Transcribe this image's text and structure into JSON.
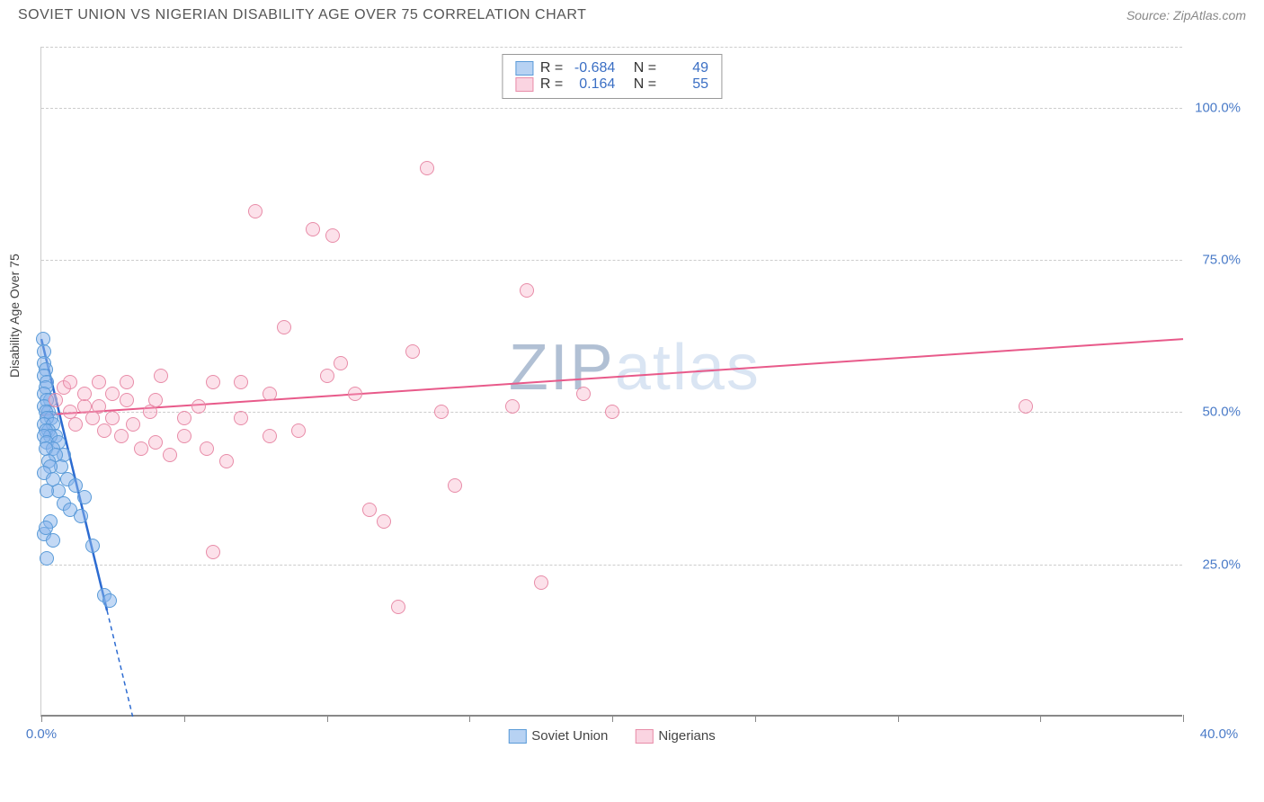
{
  "header": {
    "title": "SOVIET UNION VS NIGERIAN DISABILITY AGE OVER 75 CORRELATION CHART",
    "source": "Source: ZipAtlas.com"
  },
  "watermark": {
    "prefix": "ZIP",
    "suffix": "atlas"
  },
  "chart": {
    "type": "scatter",
    "ylabel": "Disability Age Over 75",
    "xlim": [
      0,
      40
    ],
    "ylim": [
      0,
      110
    ],
    "xticks": [
      0,
      5,
      10,
      15,
      20,
      25,
      30,
      35,
      40
    ],
    "xtick_labels": {
      "0": "0.0%",
      "40": "40.0%"
    },
    "yticks": [
      25,
      50,
      75,
      100
    ],
    "ytick_labels": [
      "25.0%",
      "50.0%",
      "75.0%",
      "100.0%"
    ],
    "dash_at": 110,
    "background_color": "#ffffff",
    "grid_color": "#cccccc",
    "series": [
      {
        "name": "Soviet Union",
        "color_fill": "rgba(135,180,235,0.5)",
        "color_stroke": "#5a9bd8",
        "R": "-0.684",
        "N": "49",
        "trend": {
          "x1": 0,
          "y1": 62,
          "x2": 3.2,
          "y2": 0,
          "color": "#2c6bd1",
          "width": 2.5,
          "dash_after": 2.3
        },
        "points": [
          [
            0.05,
            62
          ],
          [
            0.1,
            60
          ],
          [
            0.1,
            58
          ],
          [
            0.15,
            57
          ],
          [
            0.1,
            56
          ],
          [
            0.2,
            55
          ],
          [
            0.15,
            54
          ],
          [
            0.1,
            53
          ],
          [
            0.3,
            52
          ],
          [
            0.2,
            52
          ],
          [
            0.1,
            51
          ],
          [
            0.25,
            50
          ],
          [
            0.15,
            50
          ],
          [
            0.35,
            49
          ],
          [
            0.2,
            49
          ],
          [
            0.1,
            48
          ],
          [
            0.4,
            48
          ],
          [
            0.25,
            47
          ],
          [
            0.15,
            47
          ],
          [
            0.5,
            46
          ],
          [
            0.3,
            46
          ],
          [
            0.1,
            46
          ],
          [
            0.2,
            45
          ],
          [
            0.6,
            45
          ],
          [
            0.4,
            44
          ],
          [
            0.15,
            44
          ],
          [
            0.8,
            43
          ],
          [
            0.5,
            43
          ],
          [
            0.25,
            42
          ],
          [
            0.7,
            41
          ],
          [
            0.3,
            41
          ],
          [
            0.1,
            40
          ],
          [
            0.9,
            39
          ],
          [
            0.4,
            39
          ],
          [
            1.2,
            38
          ],
          [
            0.6,
            37
          ],
          [
            0.2,
            37
          ],
          [
            1.5,
            36
          ],
          [
            0.8,
            35
          ],
          [
            1.0,
            34
          ],
          [
            1.4,
            33
          ],
          [
            0.3,
            32
          ],
          [
            0.1,
            30
          ],
          [
            0.4,
            29
          ],
          [
            1.8,
            28
          ],
          [
            2.2,
            20
          ],
          [
            2.4,
            19
          ],
          [
            0.2,
            26
          ],
          [
            0.15,
            31
          ]
        ]
      },
      {
        "name": "Nigerians",
        "color_fill": "rgba(245,170,195,0.35)",
        "color_stroke": "#e88ca8",
        "R": "0.164",
        "N": "55",
        "trend": {
          "x1": 0,
          "y1": 49.5,
          "x2": 40,
          "y2": 62,
          "color": "#e85a8a",
          "width": 2,
          "dash_after": null
        },
        "points": [
          [
            0.5,
            52
          ],
          [
            0.8,
            54
          ],
          [
            1.0,
            50
          ],
          [
            1.2,
            48
          ],
          [
            1.5,
            51
          ],
          [
            1.8,
            49
          ],
          [
            2.0,
            55
          ],
          [
            2.2,
            47
          ],
          [
            2.5,
            53
          ],
          [
            2.8,
            46
          ],
          [
            3.0,
            52
          ],
          [
            3.2,
            48
          ],
          [
            3.5,
            44
          ],
          [
            3.8,
            50
          ],
          [
            4.0,
            45
          ],
          [
            4.2,
            56
          ],
          [
            4.5,
            43
          ],
          [
            5.0,
            49
          ],
          [
            5.5,
            51
          ],
          [
            5.8,
            44
          ],
          [
            6.0,
            55
          ],
          [
            6.5,
            42
          ],
          [
            7.0,
            49
          ],
          [
            7.5,
            83
          ],
          [
            8.0,
            53
          ],
          [
            8.5,
            64
          ],
          [
            9.0,
            47
          ],
          [
            9.5,
            80
          ],
          [
            10.0,
            56
          ],
          [
            10.2,
            79
          ],
          [
            10.5,
            58
          ],
          [
            11.0,
            53
          ],
          [
            11.5,
            34
          ],
          [
            12.0,
            32
          ],
          [
            12.5,
            18
          ],
          [
            13.0,
            60
          ],
          [
            13.5,
            90
          ],
          [
            14.0,
            50
          ],
          [
            14.5,
            38
          ],
          [
            16.5,
            51
          ],
          [
            17.0,
            70
          ],
          [
            17.5,
            22
          ],
          [
            19.0,
            53
          ],
          [
            20.0,
            50
          ],
          [
            34.5,
            51
          ],
          [
            1.0,
            55
          ],
          [
            1.5,
            53
          ],
          [
            2.0,
            51
          ],
          [
            2.5,
            49
          ],
          [
            3.0,
            55
          ],
          [
            4.0,
            52
          ],
          [
            5.0,
            46
          ],
          [
            6.0,
            27
          ],
          [
            7.0,
            55
          ],
          [
            8.0,
            46
          ]
        ]
      }
    ],
    "legend": [
      "Soviet Union",
      "Nigerians"
    ],
    "stats_label_R": "R =",
    "stats_label_N": "N ="
  }
}
